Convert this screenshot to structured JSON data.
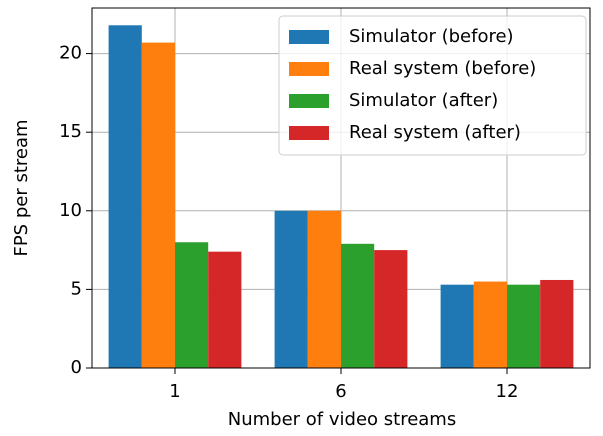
{
  "chart_data": {
    "type": "bar",
    "x_label": "Number of video streams",
    "y_label": "FPS per stream",
    "categories": [
      "1",
      "6",
      "12"
    ],
    "series": [
      {
        "name": "Simulator (before)",
        "color": "#1f77b4",
        "values": [
          21.8,
          10.0,
          5.3
        ]
      },
      {
        "name": "Real system (before)",
        "color": "#ff7f0e",
        "values": [
          20.7,
          10.0,
          5.5
        ]
      },
      {
        "name": "Simulator (after)",
        "color": "#2ca02c",
        "values": [
          8.0,
          7.9,
          5.3
        ]
      },
      {
        "name": "Real system (after)",
        "color": "#d62728",
        "values": [
          7.4,
          7.5,
          5.6
        ]
      }
    ],
    "ylim": [
      0,
      22.9
    ],
    "yticks": [
      0,
      5,
      10,
      15,
      20
    ],
    "grid": true,
    "legend": "upper right"
  }
}
